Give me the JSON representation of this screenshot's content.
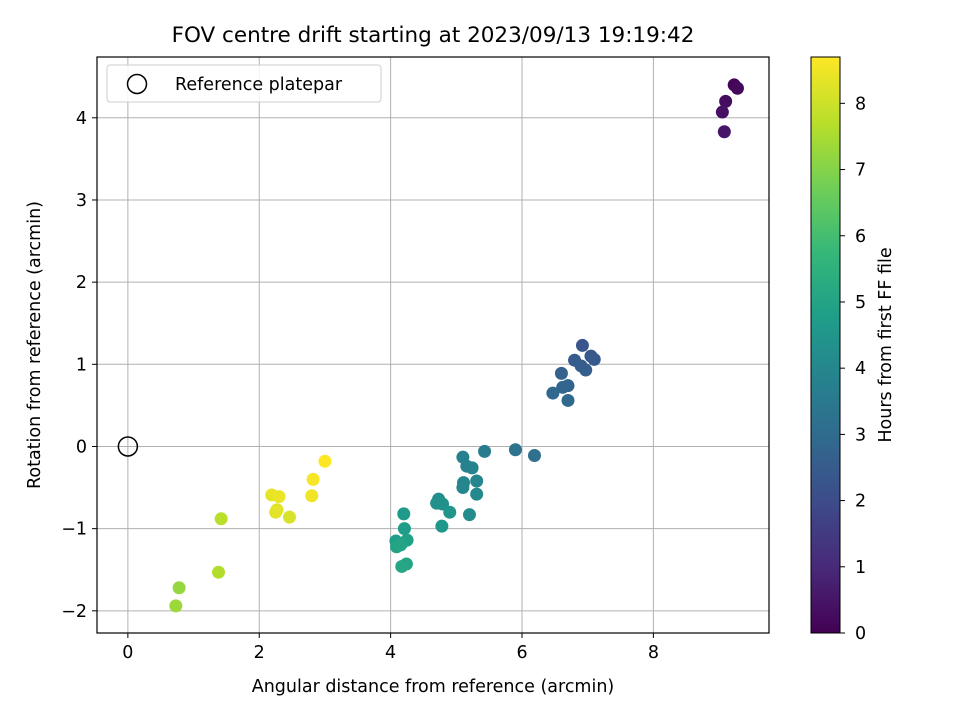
{
  "chart_data": {
    "type": "scatter",
    "title": "FOV centre drift starting at 2023/09/13 19:19:42",
    "xlabel": "Angular distance from reference (arcmin)",
    "ylabel": "Rotation from reference (arcmin)",
    "xlim": [
      -0.47,
      9.76
    ],
    "ylim": [
      -2.27,
      4.74
    ],
    "xticks": [
      0,
      2,
      4,
      6,
      8
    ],
    "yticks": [
      -2,
      -1,
      0,
      1,
      2,
      3,
      4
    ],
    "grid": true,
    "legend": {
      "position": "top-left",
      "entries": [
        "Reference platepar"
      ]
    },
    "reference_point": {
      "label": "Reference platepar",
      "x": 0,
      "y": 0
    },
    "colorbar": {
      "label": "Hours from first FF file",
      "range": [
        0,
        8.7
      ],
      "ticks": [
        0,
        1,
        2,
        3,
        4,
        5,
        6,
        7,
        8
      ],
      "colormap": "viridis",
      "colormap_stops": [
        "#440154",
        "#482878",
        "#3e4989",
        "#31688e",
        "#26828e",
        "#1f9e89",
        "#35b779",
        "#6ece58",
        "#b5de2b",
        "#fde725"
      ]
    },
    "points": [
      {
        "x": 9.23,
        "y": 4.4,
        "hours": 0.1
      },
      {
        "x": 9.28,
        "y": 4.36,
        "hours": 0.2
      },
      {
        "x": 9.1,
        "y": 4.2,
        "hours": 0.3
      },
      {
        "x": 9.05,
        "y": 4.07,
        "hours": 0.4
      },
      {
        "x": 9.08,
        "y": 3.83,
        "hours": 0.5
      },
      {
        "x": 6.92,
        "y": 1.23,
        "hours": 2.3
      },
      {
        "x": 7.05,
        "y": 1.1,
        "hours": 2.4
      },
      {
        "x": 7.1,
        "y": 1.06,
        "hours": 2.45
      },
      {
        "x": 6.8,
        "y": 1.05,
        "hours": 2.5
      },
      {
        "x": 6.9,
        "y": 0.98,
        "hours": 2.55
      },
      {
        "x": 6.97,
        "y": 0.93,
        "hours": 2.6
      },
      {
        "x": 6.6,
        "y": 0.89,
        "hours": 2.7
      },
      {
        "x": 6.7,
        "y": 0.74,
        "hours": 2.8
      },
      {
        "x": 6.62,
        "y": 0.72,
        "hours": 2.85
      },
      {
        "x": 6.47,
        "y": 0.65,
        "hours": 2.9
      },
      {
        "x": 6.7,
        "y": 0.56,
        "hours": 2.95
      },
      {
        "x": 5.9,
        "y": -0.04,
        "hours": 3.3
      },
      {
        "x": 6.19,
        "y": -0.11,
        "hours": 3.2
      },
      {
        "x": 5.43,
        "y": -0.06,
        "hours": 3.6
      },
      {
        "x": 5.1,
        "y": -0.13,
        "hours": 3.8
      },
      {
        "x": 5.16,
        "y": -0.24,
        "hours": 3.85
      },
      {
        "x": 5.24,
        "y": -0.26,
        "hours": 3.9
      },
      {
        "x": 5.11,
        "y": -0.44,
        "hours": 4.0
      },
      {
        "x": 5.31,
        "y": -0.42,
        "hours": 4.0
      },
      {
        "x": 5.1,
        "y": -0.5,
        "hours": 4.05
      },
      {
        "x": 5.31,
        "y": -0.58,
        "hours": 4.1
      },
      {
        "x": 4.73,
        "y": -0.64,
        "hours": 4.3
      },
      {
        "x": 4.7,
        "y": -0.69,
        "hours": 4.35
      },
      {
        "x": 4.79,
        "y": -0.7,
        "hours": 4.4
      },
      {
        "x": 4.9,
        "y": -0.8,
        "hours": 4.5
      },
      {
        "x": 5.2,
        "y": -0.83,
        "hours": 4.2
      },
      {
        "x": 4.78,
        "y": -0.97,
        "hours": 4.6
      },
      {
        "x": 4.2,
        "y": -0.82,
        "hours": 4.7
      },
      {
        "x": 4.21,
        "y": -1.0,
        "hours": 4.8
      },
      {
        "x": 4.08,
        "y": -1.15,
        "hours": 4.85
      },
      {
        "x": 4.25,
        "y": -1.14,
        "hours": 4.9
      },
      {
        "x": 4.17,
        "y": -1.18,
        "hours": 4.95
      },
      {
        "x": 4.09,
        "y": -1.22,
        "hours": 5.0
      },
      {
        "x": 4.15,
        "y": -1.2,
        "hours": 5.05
      },
      {
        "x": 4.24,
        "y": -1.43,
        "hours": 5.1
      },
      {
        "x": 4.17,
        "y": -1.46,
        "hours": 5.15
      },
      {
        "x": 0.78,
        "y": -1.72,
        "hours": 7.3
      },
      {
        "x": 0.73,
        "y": -1.94,
        "hours": 7.4
      },
      {
        "x": 1.38,
        "y": -1.53,
        "hours": 7.7
      },
      {
        "x": 1.42,
        "y": -0.88,
        "hours": 7.8
      },
      {
        "x": 2.46,
        "y": -0.86,
        "hours": 8.2
      },
      {
        "x": 2.27,
        "y": -0.77,
        "hours": 8.3
      },
      {
        "x": 2.25,
        "y": -0.8,
        "hours": 8.35
      },
      {
        "x": 2.19,
        "y": -0.59,
        "hours": 8.4
      },
      {
        "x": 2.3,
        "y": -0.61,
        "hours": 8.45
      },
      {
        "x": 2.8,
        "y": -0.6,
        "hours": 8.5
      },
      {
        "x": 2.82,
        "y": -0.4,
        "hours": 8.6
      },
      {
        "x": 3.0,
        "y": -0.18,
        "hours": 8.7
      }
    ]
  }
}
